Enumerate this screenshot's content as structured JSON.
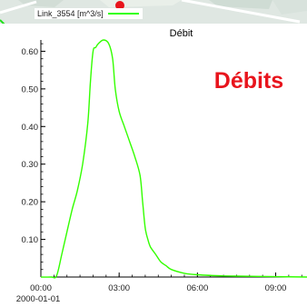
{
  "legend": {
    "label": "Link_3554 [m^3/s]",
    "color": "#33ff00"
  },
  "annotation": {
    "text": "Débits",
    "color": "#e8141c"
  },
  "map": {
    "marker_color": "#e8141c",
    "road_color": "#1fe01a"
  },
  "chart_data": {
    "type": "line",
    "title": "Débit",
    "xlabel": "",
    "ylabel": "",
    "x_unit": "hours since 2000-01-01 00:00",
    "xlim": [
      0,
      10.2
    ],
    "ylim": [
      0,
      0.63
    ],
    "grid": false,
    "x_ticks": [
      {
        "value": 0,
        "label": "00:00"
      },
      {
        "value": 3,
        "label": "03:00"
      },
      {
        "value": 6,
        "label": "06:00"
      },
      {
        "value": 9,
        "label": "09:00"
      }
    ],
    "x_date_label": "2000-01-01",
    "y_ticks": [
      {
        "value": 0.1,
        "label": "0.10"
      },
      {
        "value": 0.2,
        "label": "0.20"
      },
      {
        "value": 0.3,
        "label": "0.30"
      },
      {
        "value": 0.4,
        "label": "0.40"
      },
      {
        "value": 0.5,
        "label": "0.50"
      },
      {
        "value": 0.6,
        "label": "0.60"
      }
    ],
    "series": [
      {
        "name": "Link_3554 [m^3/s]",
        "color": "#33ff00",
        "x": [
          0.0,
          0.4,
          0.6,
          0.8,
          1.0,
          1.2,
          1.4,
          1.6,
          1.8,
          1.9,
          2.0,
          2.1,
          2.2,
          2.4,
          2.6,
          2.75,
          2.85,
          3.0,
          3.2,
          3.4,
          3.6,
          3.8,
          3.9,
          4.0,
          4.1,
          4.2,
          4.4,
          4.6,
          4.8,
          5.0,
          5.5,
          6.0,
          7.0,
          8.0,
          9.0,
          10.2
        ],
        "y": [
          0.0,
          0.0,
          0.003,
          0.06,
          0.12,
          0.18,
          0.23,
          0.3,
          0.41,
          0.52,
          0.6,
          0.61,
          0.62,
          0.63,
          0.62,
          0.58,
          0.5,
          0.44,
          0.4,
          0.36,
          0.32,
          0.27,
          0.2,
          0.13,
          0.1,
          0.08,
          0.06,
          0.04,
          0.03,
          0.02,
          0.01,
          0.006,
          0.003,
          0.002,
          0.001,
          0.0
        ]
      }
    ]
  }
}
